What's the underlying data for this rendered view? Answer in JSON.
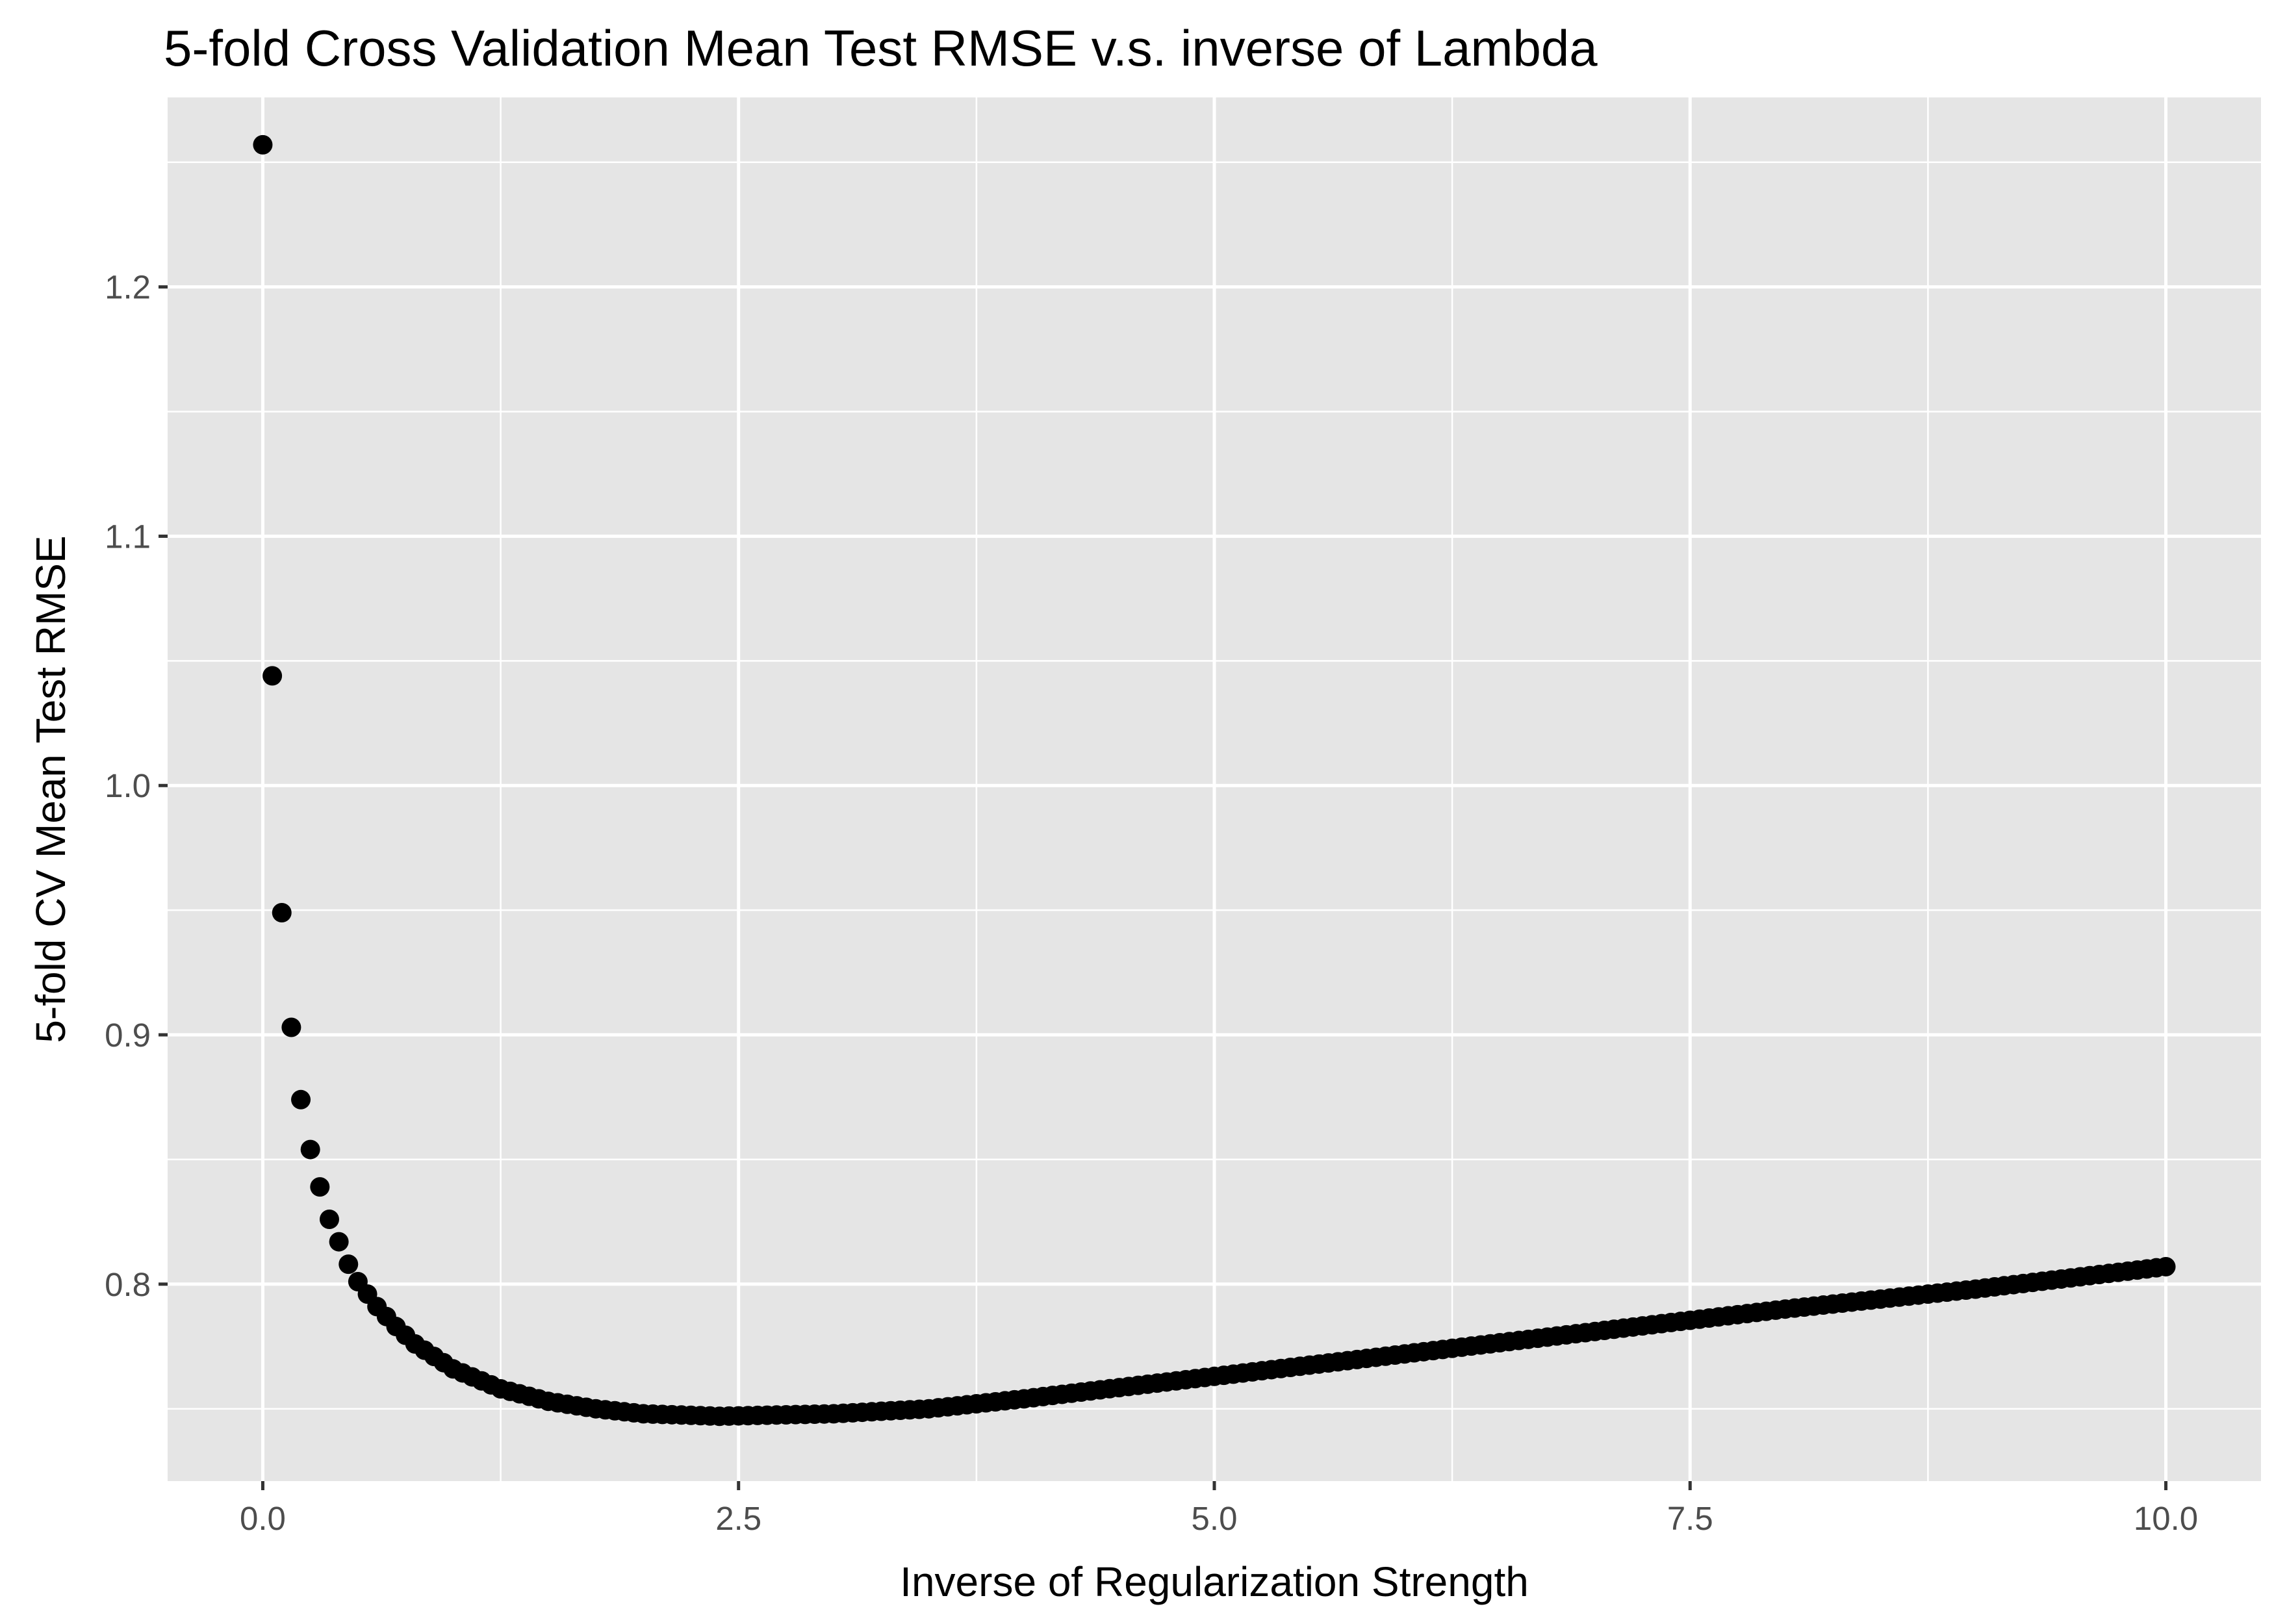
{
  "chart_data": {
    "type": "scatter",
    "title": "5-fold Cross Validation Mean Test RMSE v.s. inverse of Lambda",
    "xlabel": "Inverse of Regularization Strength",
    "ylabel": "5-fold CV Mean Test RMSE",
    "xlim": [
      -0.5,
      10.5
    ],
    "ylim": [
      0.721,
      1.276
    ],
    "x_ticks": [
      0.0,
      2.5,
      5.0,
      7.5,
      10.0
    ],
    "x_tick_labels": [
      "0.0",
      "2.5",
      "5.0",
      "7.5",
      "10.0"
    ],
    "y_ticks": [
      0.8,
      0.9,
      1.0,
      1.1,
      1.2
    ],
    "y_tick_labels": [
      "0.8",
      "0.9",
      "1.0",
      "1.1",
      "1.2"
    ],
    "grid": true,
    "legend": "none",
    "colors": {
      "panel": "#e5e5e5",
      "grid": "#ffffff",
      "point": "#000000",
      "tick": "#333333"
    },
    "series": [
      {
        "x_start": 0.0,
        "x_end": 10.0,
        "x_step": 0.05,
        "points": [
          {
            "x": 0.0,
            "y": 1.257
          },
          {
            "x": 0.05,
            "y": 1.044
          },
          {
            "x": 0.1,
            "y": 0.949
          },
          {
            "x": 0.15,
            "y": 0.903
          },
          {
            "x": 0.2,
            "y": 0.874
          },
          {
            "x": 0.25,
            "y": 0.854
          },
          {
            "x": 0.3,
            "y": 0.839
          },
          {
            "x": 0.35,
            "y": 0.826
          },
          {
            "x": 0.4,
            "y": 0.817
          },
          {
            "x": 0.45,
            "y": 0.808
          },
          {
            "x": 0.5,
            "y": 0.801
          },
          {
            "x": 0.6,
            "y": 0.791
          },
          {
            "x": 0.7,
            "y": 0.783
          },
          {
            "x": 0.8,
            "y": 0.776
          },
          {
            "x": 1.0,
            "y": 0.766
          },
          {
            "x": 1.25,
            "y": 0.758
          },
          {
            "x": 1.5,
            "y": 0.753
          },
          {
            "x": 1.75,
            "y": 0.75
          },
          {
            "x": 2.0,
            "y": 0.748
          },
          {
            "x": 2.4,
            "y": 0.747
          },
          {
            "x": 3.0,
            "y": 0.748
          },
          {
            "x": 3.5,
            "y": 0.75
          },
          {
            "x": 4.0,
            "y": 0.754
          },
          {
            "x": 5.0,
            "y": 0.763
          },
          {
            "x": 6.0,
            "y": 0.772
          },
          {
            "x": 7.0,
            "y": 0.781
          },
          {
            "x": 8.0,
            "y": 0.79
          },
          {
            "x": 9.0,
            "y": 0.798
          },
          {
            "x": 10.0,
            "y": 0.807
          }
        ]
      }
    ]
  }
}
